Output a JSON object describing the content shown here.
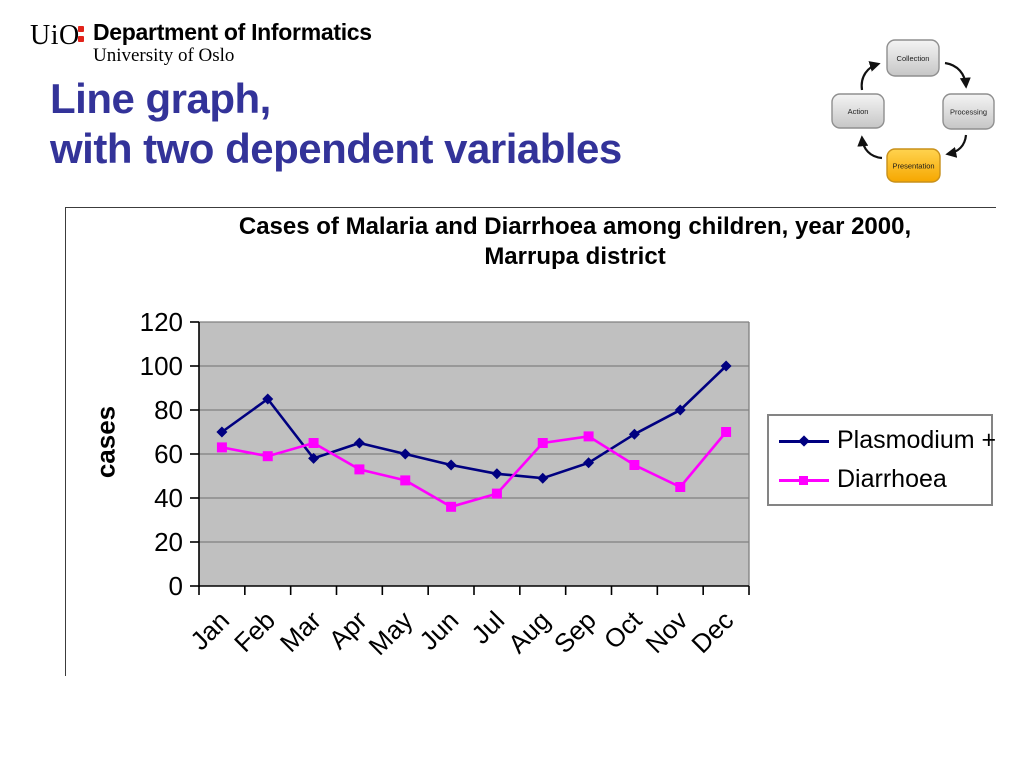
{
  "header": {
    "wordmark": "UiO",
    "department": "Department of Informatics",
    "university": "University of Oslo",
    "brand_red": "#e2231a"
  },
  "title": {
    "line1": "Line graph,",
    "line2": "with two dependent variables",
    "color": "#333399"
  },
  "diagram": {
    "nodes": [
      {
        "label": "Collection",
        "active": false
      },
      {
        "label": "Processing",
        "active": false
      },
      {
        "label": "Presentation",
        "active": true
      },
      {
        "label": "Action",
        "active": false
      }
    ],
    "active_fill_top": "#ffd34f",
    "active_fill_bottom": "#f6a700",
    "active_stroke": "#c8901a"
  },
  "chart_data": {
    "type": "line",
    "title": "Cases of Malaria and Diarrhoea among children, year 2000, Marrupa district",
    "title_line1": "Cases of Malaria and Diarrhoea among children, year 2000,",
    "title_line2": "Marrupa district",
    "ylabel": "cases",
    "xlabel": "",
    "categories": [
      "Jan",
      "Feb",
      "Mar",
      "Apr",
      "May",
      "Jun",
      "Jul",
      "Aug",
      "Sep",
      "Oct",
      "Nov",
      "Dec"
    ],
    "series": [
      {
        "name": "Plasmodium +",
        "color": "#000080",
        "marker": "diamond",
        "values": [
          70,
          85,
          58,
          65,
          60,
          55,
          51,
          49,
          56,
          69,
          80,
          100
        ]
      },
      {
        "name": "Diarrhoea",
        "color": "#FF00FF",
        "marker": "square",
        "values": [
          63,
          59,
          65,
          53,
          48,
          36,
          42,
          65,
          68,
          55,
          45,
          70
        ]
      }
    ],
    "ylim": [
      0,
      120
    ],
    "yticks": [
      0,
      20,
      40,
      60,
      80,
      100,
      120
    ],
    "plot_bg": "#C0C0C0",
    "grid_color": "#808080",
    "grid": true,
    "legend_position": "right"
  }
}
